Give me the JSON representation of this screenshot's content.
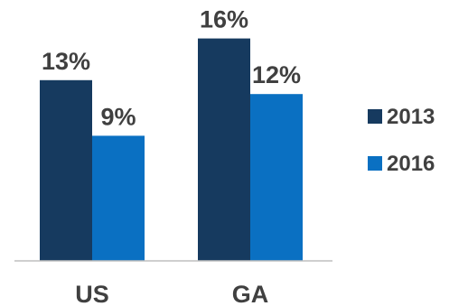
{
  "chart_data": {
    "type": "bar",
    "categories": [
      "US",
      "GA"
    ],
    "series": [
      {
        "name": "2013",
        "values": [
          13,
          16
        ],
        "labels": [
          "13%",
          "16%"
        ],
        "color": "#163a5f"
      },
      {
        "name": "2016",
        "values": [
          9,
          12
        ],
        "labels": [
          "9%",
          "12%"
        ],
        "color": "#0a70c2"
      }
    ],
    "ylim": [
      0,
      21
    ],
    "grid": false,
    "legend_position": "right",
    "baseline_color": "#bfbfbf",
    "label_color": "#404040"
  }
}
